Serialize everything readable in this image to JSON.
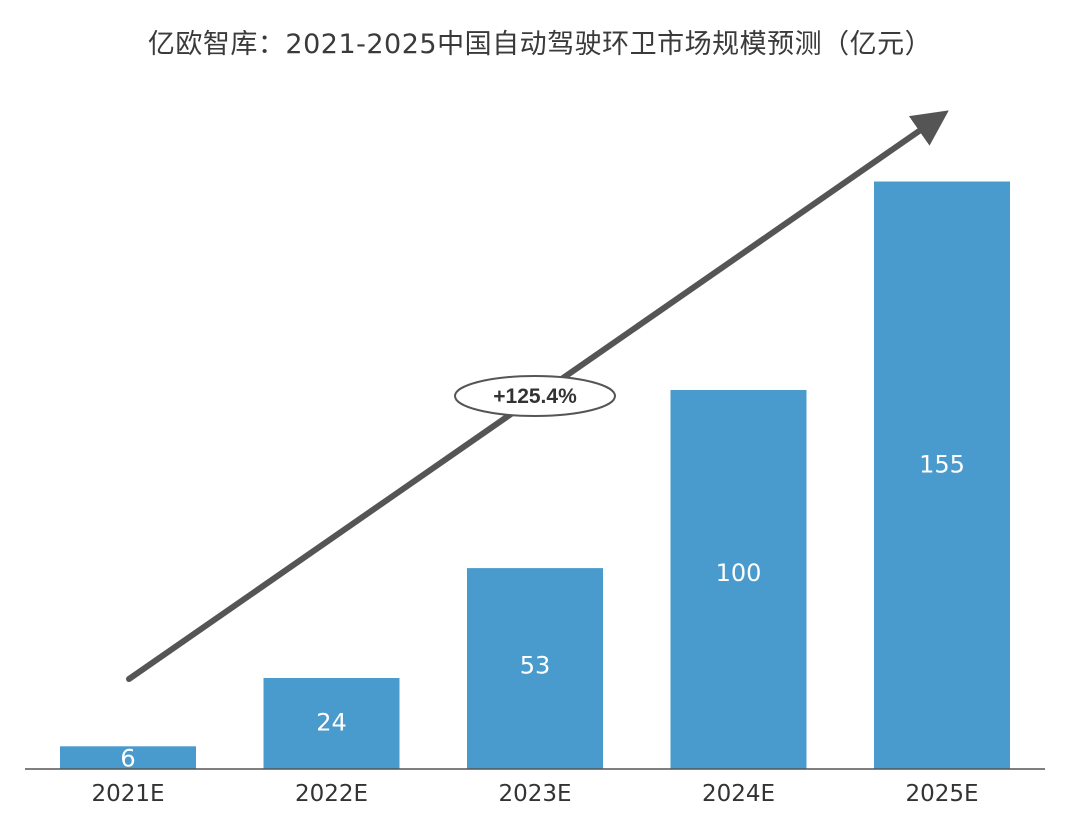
{
  "chart_data": {
    "type": "bar",
    "title": "亿欧智库：2021-2025中国自动驾驶环卫市场规模预测（亿元）",
    "categories": [
      "2021E",
      "2022E",
      "2023E",
      "2024E",
      "2025E"
    ],
    "values": [
      6,
      24,
      53,
      100,
      155
    ],
    "ylim": [
      0,
      160
    ],
    "xlabel": "",
    "ylabel": "",
    "grid": false,
    "legend": "none",
    "bar_color": "#4a9bcd",
    "annotation": {
      "text": "+125.4%",
      "shape": "ellipse",
      "arrow": "diagonal-up-right",
      "arrow_color": "#555555"
    }
  }
}
